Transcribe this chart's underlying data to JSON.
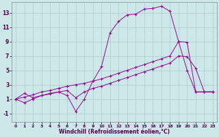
{
  "bg_color": "#cce8e8",
  "grid_color": "#aacccc",
  "line_color": "#990099",
  "xlabel": "Windchill (Refroidissement éolien,°C)",
  "xlim": [
    -0.5,
    23.5
  ],
  "ylim": [
    -2.2,
    14.5
  ],
  "xticks": [
    0,
    1,
    2,
    3,
    4,
    5,
    6,
    7,
    8,
    9,
    10,
    11,
    12,
    13,
    14,
    15,
    16,
    17,
    18,
    19,
    20,
    21,
    22,
    23
  ],
  "yticks": [
    -1,
    1,
    3,
    5,
    7,
    9,
    11,
    13
  ],
  "line1_x": [
    0,
    1,
    2,
    3,
    4,
    5,
    6,
    7,
    8,
    9,
    10,
    11,
    12,
    13,
    14,
    15,
    16,
    17,
    18,
    19,
    20,
    21,
    22,
    23
  ],
  "line1_y": [
    1.0,
    1.8,
    1.2,
    1.5,
    1.7,
    2.0,
    2.2,
    1.2,
    2.0,
    2.5,
    2.8,
    3.2,
    3.6,
    4.0,
    4.4,
    4.8,
    5.2,
    5.6,
    6.0,
    7.0,
    6.9,
    5.3,
    2.0,
    2.0
  ],
  "line2_x": [
    0,
    1,
    2,
    3,
    4,
    5,
    6,
    7,
    8,
    9,
    10,
    11,
    12,
    13,
    14,
    15,
    16,
    17,
    18,
    19,
    20,
    21,
    22,
    23
  ],
  "line2_y": [
    1.0,
    1.3,
    1.6,
    2.0,
    2.2,
    2.5,
    2.8,
    3.0,
    3.2,
    3.5,
    3.8,
    4.2,
    4.6,
    5.0,
    5.4,
    5.8,
    6.2,
    6.6,
    7.0,
    9.0,
    8.9,
    2.0,
    2.0,
    2.0
  ],
  "line3_x": [
    0,
    1,
    2,
    3,
    4,
    5,
    6,
    7,
    8,
    9,
    10,
    11,
    12,
    13,
    14,
    15,
    16,
    17,
    18,
    19,
    20,
    21,
    22,
    23
  ],
  "line3_y": [
    1.0,
    0.5,
    1.0,
    1.5,
    1.8,
    2.0,
    1.5,
    -0.7,
    1.0,
    3.5,
    5.5,
    10.2,
    11.8,
    12.7,
    12.8,
    13.5,
    13.6,
    13.9,
    13.2,
    9.0,
    5.0,
    2.0,
    2.0,
    2.0
  ]
}
